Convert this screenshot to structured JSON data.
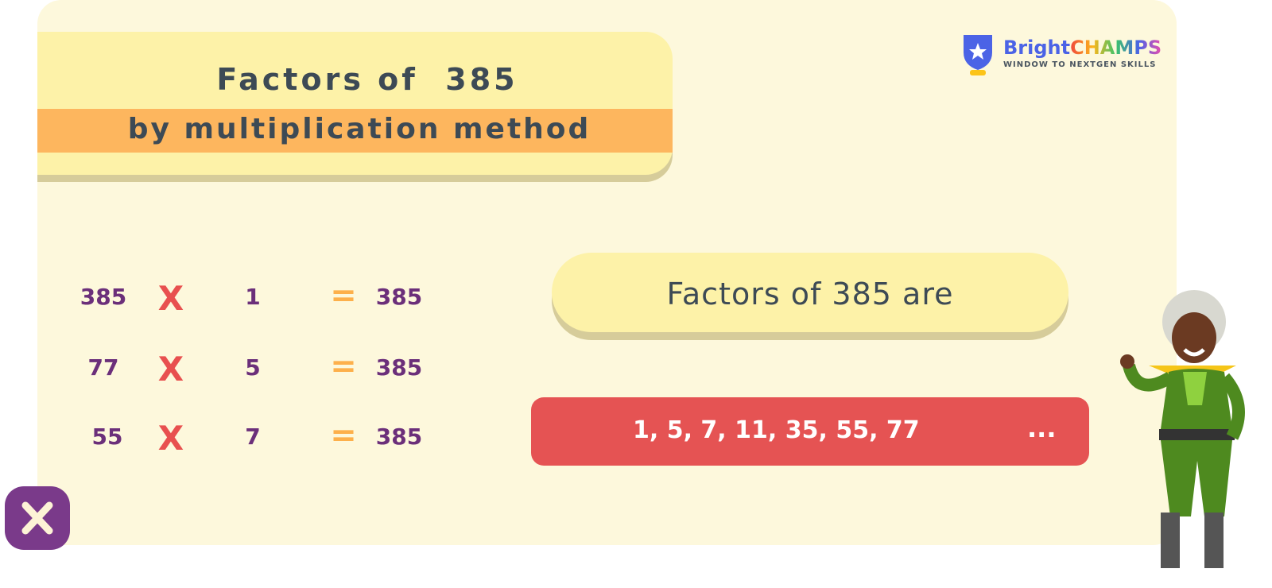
{
  "title": {
    "line1": "Factors of  385",
    "line2": "by multiplication method"
  },
  "logo": {
    "name_part1": "Bright",
    "name_part2": "CHAMPS",
    "tagline": "WINDOW TO NEXTGEN SKILLS"
  },
  "equations": [
    {
      "a": "385",
      "op": "X",
      "b": "1",
      "eq": "=",
      "result": "385"
    },
    {
      "a": "77",
      "op": "X",
      "b": "5",
      "eq": "=",
      "result": "385"
    },
    {
      "a": "55",
      "op": "X",
      "b": "7",
      "eq": "=",
      "result": "385"
    }
  ],
  "factors_label": "Factors of 385 are",
  "factors_list": "1, 5, 7, 11, 35, 55, 77",
  "factors_more": "...",
  "colors": {
    "background": "#fdf8dc",
    "title_box": "#fdf2a8",
    "band": "#fdb65e",
    "red_bar": "#e55353",
    "number": "#6b2f7a",
    "times": "#e8504f",
    "equals": "#fdb04b",
    "close_button": "#7a3a8a"
  },
  "icons": {
    "close": "close-x-icon",
    "logo": "shield-star-icon"
  }
}
